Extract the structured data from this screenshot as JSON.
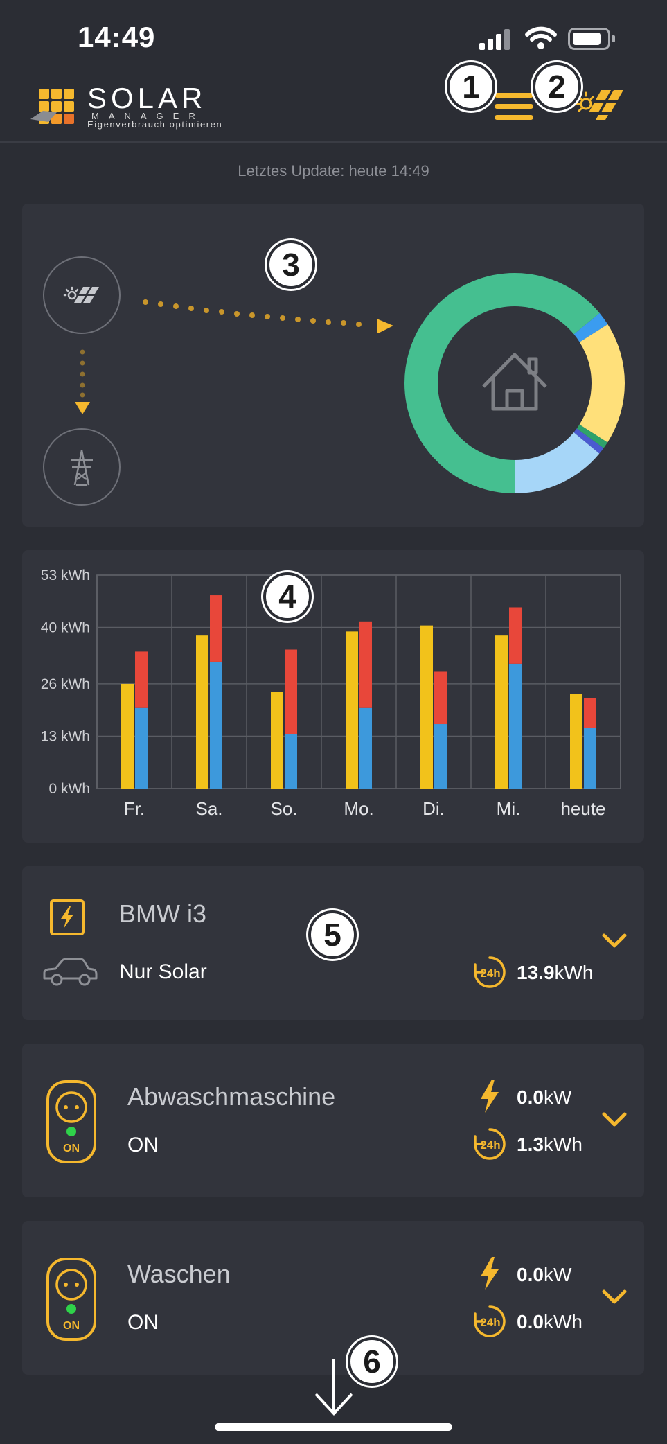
{
  "status_bar": {
    "time": "14:49"
  },
  "header": {
    "logo_word": "SOLAR",
    "logo_sub1": "MANAGER",
    "logo_sub2": "Eigenverbrauch optimieren",
    "badge_1": "1",
    "badge_2": "2"
  },
  "update_text": "Letztes Update: heute 14:49",
  "energy_flow": {
    "badge": "3",
    "donut": [
      {
        "label": "green",
        "fraction": 0.64,
        "color": "#45bf90"
      },
      {
        "label": "blue",
        "fraction": 0.02,
        "color": "#3b9cf0"
      },
      {
        "label": "yellow",
        "fraction": 0.18,
        "color": "#ffe07a"
      },
      {
        "label": "green-thin",
        "fraction": 0.01,
        "color": "#2fa26a"
      },
      {
        "label": "navy-thin",
        "fraction": 0.01,
        "color": "#4a5ad0"
      },
      {
        "label": "light-blue",
        "fraction": 0.14,
        "color": "#a6d6f8"
      }
    ]
  },
  "chart_badge": "4",
  "chart_data": {
    "type": "bar",
    "categories": [
      "Fr.",
      "Sa.",
      "So.",
      "Mo.",
      "Di.",
      "Mi.",
      "heute"
    ],
    "ylabels": [
      "53 kWh",
      "40 kWh",
      "26 kWh",
      "13 kWh",
      "0 kWh"
    ],
    "yticks": [
      53,
      40,
      26,
      13,
      0
    ],
    "ylim": [
      0,
      53
    ],
    "grid": true,
    "series": [
      {
        "key": "production",
        "color": "#f2c21b",
        "values": [
          26,
          38,
          24,
          39,
          40.5,
          38,
          23.5
        ]
      },
      {
        "key": "self",
        "color": "#3d99dc",
        "values": [
          20,
          31.5,
          13.5,
          20,
          16,
          31,
          15
        ]
      },
      {
        "key": "grid",
        "color": "#e8473a",
        "values": [
          14,
          16.5,
          21,
          21.5,
          13,
          14,
          7.5
        ]
      }
    ]
  },
  "devices": [
    {
      "badge": "5",
      "title": "BMW i3",
      "mode": "Nur Solar",
      "energy_value": "13.9",
      "energy_unit": "kWh",
      "energy_icon_label": "24h"
    },
    {
      "title": "Abwaschmaschine",
      "mode": "ON",
      "socket_label": "ON",
      "power_value": "0.0",
      "power_unit": "kW",
      "energy_value": "1.3",
      "energy_unit": "kWh",
      "energy_icon_label": "24h"
    },
    {
      "title": "Waschen",
      "mode": "ON",
      "socket_label": "ON",
      "power_value": "0.0",
      "power_unit": "kW",
      "energy_value": "0.0",
      "energy_unit": "kWh",
      "energy_icon_label": "24h"
    }
  ],
  "scroll_badge": "6",
  "colors": {
    "accent": "#f5b82e",
    "background": "#2b2d34",
    "card": "#32343c"
  }
}
